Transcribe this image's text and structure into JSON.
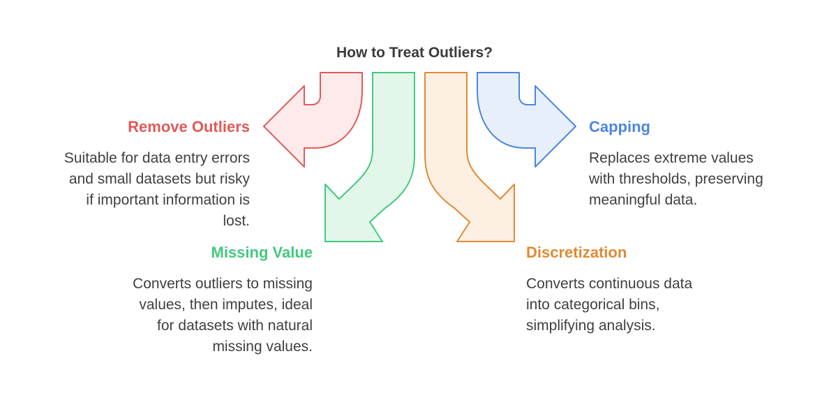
{
  "title": "How to Treat Outliers?",
  "colors": {
    "remove": "#e05a59",
    "missing": "#43c97e",
    "discretize": "#e08a33",
    "capping": "#4d86df"
  },
  "options": [
    {
      "key": "remove",
      "heading": "Remove Outliers",
      "desc_lines": [
        "Suitable for data entry errors",
        "and small datasets but risky",
        "if important information is",
        "lost."
      ]
    },
    {
      "key": "missing",
      "heading": "Missing Value",
      "desc_lines": [
        "Converts outliers to missing",
        "values, then imputes, ideal",
        "for datasets with natural",
        "missing values."
      ]
    },
    {
      "key": "discretize",
      "heading": "Discretization",
      "desc_lines": [
        "Converts continuous data",
        "into categorical bins,",
        "simplifying analysis."
      ]
    },
    {
      "key": "capping",
      "heading": "Capping",
      "desc_lines": [
        "Replaces extreme values",
        "with thresholds, preserving",
        "meaningful data."
      ]
    }
  ]
}
